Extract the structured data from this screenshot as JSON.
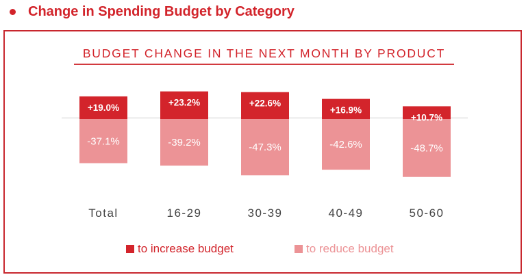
{
  "header": {
    "title": "Change in Spending Budget by Category"
  },
  "colors": {
    "accent": "#d2232a",
    "increase": "#d3242b",
    "reduce": "#ec9396",
    "baseline": "#cccccc"
  },
  "chart_data": {
    "type": "bar",
    "title": "BUDGET CHANGE IN THE NEXT MONTH BY PRODUCT",
    "categories": [
      "Total",
      "16-29",
      "30-39",
      "40-49",
      "50-60"
    ],
    "series": [
      {
        "name": "to increase budget",
        "values": [
          19.0,
          23.2,
          22.6,
          16.9,
          10.7
        ],
        "labels": [
          "+19.0%",
          "+23.2%",
          "+22.6%",
          "+16.9%",
          "+10.7%"
        ]
      },
      {
        "name": "to reduce budget",
        "values": [
          -37.1,
          -39.2,
          -47.3,
          -42.6,
          -48.7
        ],
        "labels": [
          "-37.1%",
          "-39.2%",
          "-47.3%",
          "-42.6%",
          "-48.7%"
        ]
      }
    ],
    "ylim": [
      -50,
      25
    ],
    "grid": false,
    "legend": "bottom-center"
  }
}
